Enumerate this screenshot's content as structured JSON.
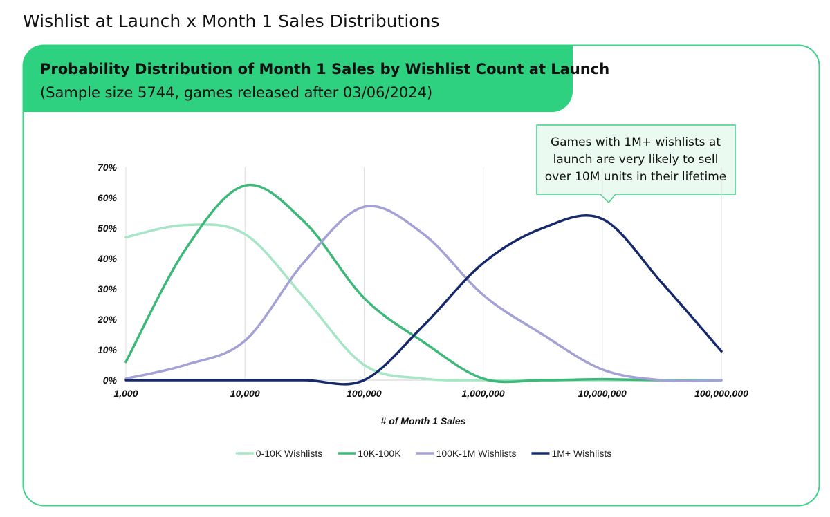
{
  "page_title": "Wishlist at Launch x Month 1 Sales Distributions",
  "chart_data": {
    "type": "line",
    "title": "Probability Distribution of Month 1 Sales by Wishlist Count at Launch",
    "subtitle": "(Sample size 5744, games released after 03/06/2024)",
    "x_label": "# of Month 1 Sales",
    "annotation": [
      "Games with 1M+ wishlists at",
      "launch are very likely to sell",
      "over 10M units in their lifetime"
    ],
    "x": [
      1000,
      3162,
      10000,
      31623,
      100000,
      316228,
      1000000,
      3162278,
      10000000,
      31622777,
      100000000
    ],
    "x_log": true,
    "xlim": [
      1000,
      100000000
    ],
    "xticks": [
      {
        "value": 1000,
        "label": "1,000"
      },
      {
        "value": 10000,
        "label": "10,000"
      },
      {
        "value": 100000,
        "label": "100,000"
      },
      {
        "value": 1000000,
        "label": "1,000,000"
      },
      {
        "value": 10000000,
        "label": "10,000,000"
      },
      {
        "value": 100000000,
        "label": "100,000,000"
      }
    ],
    "ylim": [
      0,
      70
    ],
    "yticks": [
      {
        "value": 0,
        "label": "0%"
      },
      {
        "value": 10,
        "label": "10%"
      },
      {
        "value": 20,
        "label": "20%"
      },
      {
        "value": 30,
        "label": "30%"
      },
      {
        "value": 40,
        "label": "40%"
      },
      {
        "value": 50,
        "label": "50%"
      },
      {
        "value": 60,
        "label": "60%"
      },
      {
        "value": 70,
        "label": "70%"
      }
    ],
    "grid": "x",
    "legend": "bottom",
    "series": [
      {
        "name": "0-10K Wishlists",
        "color": "#a6e6c6",
        "values": [
          47,
          51,
          48,
          27,
          5,
          0.5,
          0,
          0,
          0,
          0,
          0
        ]
      },
      {
        "name": "10K-100K",
        "color": "#3cb878",
        "values": [
          6,
          43,
          64,
          52,
          27,
          12.5,
          0.5,
          0,
          0.3,
          0,
          0
        ]
      },
      {
        "name": "100K-1M Wishlists",
        "color": "#a3a1d6",
        "values": [
          0.5,
          5,
          13,
          39,
          57,
          48,
          28,
          15,
          3.5,
          0,
          0
        ]
      },
      {
        "name": "1M+ Wishlists",
        "color": "#16296a",
        "values": [
          0,
          0,
          0,
          0,
          0,
          18,
          38.5,
          50,
          53,
          32,
          9.5
        ]
      }
    ]
  }
}
